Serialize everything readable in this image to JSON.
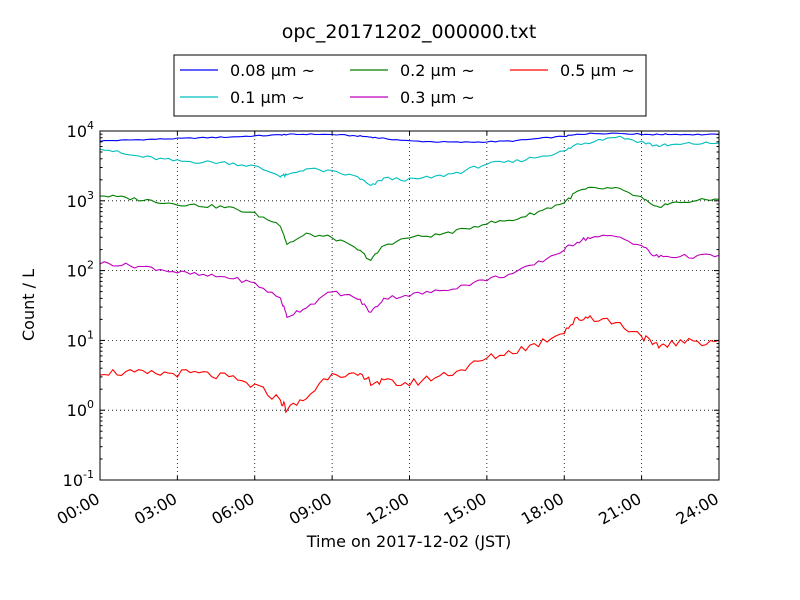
{
  "chart_data": {
    "type": "line",
    "title": "opc_20171202_000000.txt",
    "xlabel": "Time on 2017-12-02 (JST)",
    "ylabel": "Count / L",
    "yscale": "log",
    "xlim": [
      "00:00",
      "24:00"
    ],
    "ylim": [
      0.1,
      10000
    ],
    "x_ticks": [
      "00:00",
      "03:00",
      "06:00",
      "09:00",
      "12:00",
      "15:00",
      "18:00",
      "21:00",
      "24:00"
    ],
    "y_ticks": [
      {
        "base": "10",
        "exp": "-1",
        "value": 0.1
      },
      {
        "base": "10",
        "exp": "0",
        "value": 1
      },
      {
        "base": "10",
        "exp": "1",
        "value": 10
      },
      {
        "base": "10",
        "exp": "2",
        "value": 100
      },
      {
        "base": "10",
        "exp": "3",
        "value": 1000
      },
      {
        "base": "10",
        "exp": "4",
        "value": 10000
      }
    ],
    "grid": true,
    "legend_position": "top",
    "x": [
      "00:00",
      "01:00",
      "02:00",
      "03:00",
      "04:00",
      "05:00",
      "06:00",
      "07:00",
      "07:15",
      "08:00",
      "09:00",
      "10:00",
      "10:30",
      "11:00",
      "12:00",
      "13:00",
      "14:00",
      "15:00",
      "16:00",
      "17:00",
      "18:00",
      "18:30",
      "19:00",
      "20:00",
      "21:00",
      "21:30",
      "22:00",
      "23:00",
      "24:00"
    ],
    "series": [
      {
        "name": "0.08 μm ~",
        "color": "#0000ff",
        "values": [
          7200,
          7400,
          7600,
          7800,
          8000,
          8200,
          8500,
          8800,
          8900,
          9000,
          8900,
          8500,
          8200,
          7800,
          7200,
          7000,
          6900,
          7000,
          7200,
          7800,
          8400,
          8900,
          9200,
          9300,
          9000,
          8900,
          9000,
          8900,
          8900
        ]
      },
      {
        "name": "0.1 μm ~",
        "color": "#00bfbf",
        "values": [
          5800,
          4600,
          4100,
          3700,
          3600,
          3500,
          3100,
          2300,
          2300,
          2900,
          2600,
          2200,
          1600,
          2100,
          2000,
          2200,
          2600,
          3400,
          3600,
          4300,
          5100,
          6500,
          7000,
          8400,
          7000,
          6200,
          6200,
          6600,
          6700
        ]
      },
      {
        "name": "0.2 μm ~",
        "color": "#008000",
        "values": [
          1200,
          1100,
          1000,
          900,
          850,
          800,
          650,
          450,
          240,
          330,
          300,
          200,
          140,
          230,
          300,
          320,
          380,
          480,
          530,
          700,
          950,
          1350,
          1500,
          1500,
          1100,
          800,
          900,
          1000,
          1050
        ]
      },
      {
        "name": "0.3 μm ~",
        "color": "#bf00bf",
        "values": [
          130,
          120,
          110,
          95,
          85,
          80,
          65,
          40,
          22,
          30,
          50,
          40,
          25,
          40,
          45,
          50,
          60,
          75,
          90,
          130,
          200,
          260,
          300,
          310,
          230,
          160,
          160,
          160,
          165
        ]
      },
      {
        "name": "0.5 μm ~",
        "color": "#ff0000",
        "values": [
          3.6,
          3.4,
          3.3,
          3.4,
          3.3,
          2.9,
          2.2,
          1.4,
          1.0,
          1.5,
          3.6,
          3.0,
          2.6,
          2.5,
          2.4,
          3.0,
          3.8,
          5.5,
          7.0,
          9.0,
          14.0,
          20.0,
          22.0,
          18.0,
          12.0,
          8.0,
          9.0,
          9.5,
          10.0
        ]
      }
    ]
  }
}
